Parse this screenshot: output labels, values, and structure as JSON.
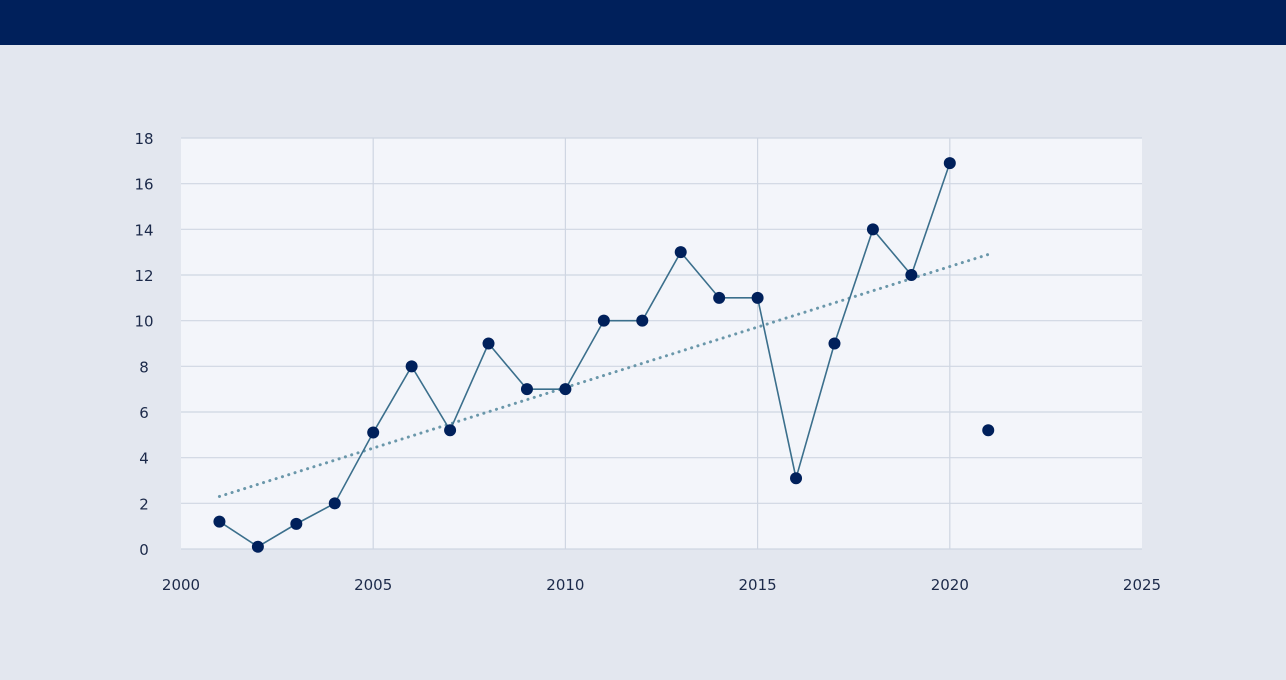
{
  "colors": {
    "header": "#00205b",
    "page_background": "#e3e7ef",
    "plot_background": "#f3f5fa",
    "grid": "#cfd6e2",
    "series_line": "#3b6f8c",
    "marker": "#00205b",
    "trendline": "#6a97aa"
  },
  "chart_data": {
    "type": "line",
    "title": "",
    "xlabel": "",
    "ylabel": "",
    "xlim": [
      2000,
      2025
    ],
    "ylim": [
      0,
      18
    ],
    "x_ticks": [
      2000,
      2005,
      2010,
      2015,
      2020,
      2025
    ],
    "y_ticks": [
      0,
      2,
      4,
      6,
      8,
      10,
      12,
      14,
      16,
      18
    ],
    "grid": true,
    "legend": "none",
    "series": [
      {
        "x": [
          2001,
          2002,
          2003,
          2004,
          2005,
          2006,
          2007,
          2008,
          2009,
          2010,
          2011,
          2012,
          2013,
          2014,
          2015,
          2016,
          2017,
          2018,
          2019,
          2020,
          2021
        ],
        "values": [
          1.2,
          0.1,
          1.1,
          2.0,
          5.1,
          8.0,
          5.2,
          9.0,
          7.0,
          7.0,
          10.0,
          10.0,
          13.0,
          11.0,
          11.0,
          3.1,
          9.0,
          14.0,
          12.0,
          16.9,
          5.2
        ],
        "line_connects_through": 2020
      }
    ],
    "trendline": {
      "style": "dotted",
      "x": [
        2001,
        2021
      ],
      "values": [
        2.3,
        12.9
      ]
    }
  }
}
